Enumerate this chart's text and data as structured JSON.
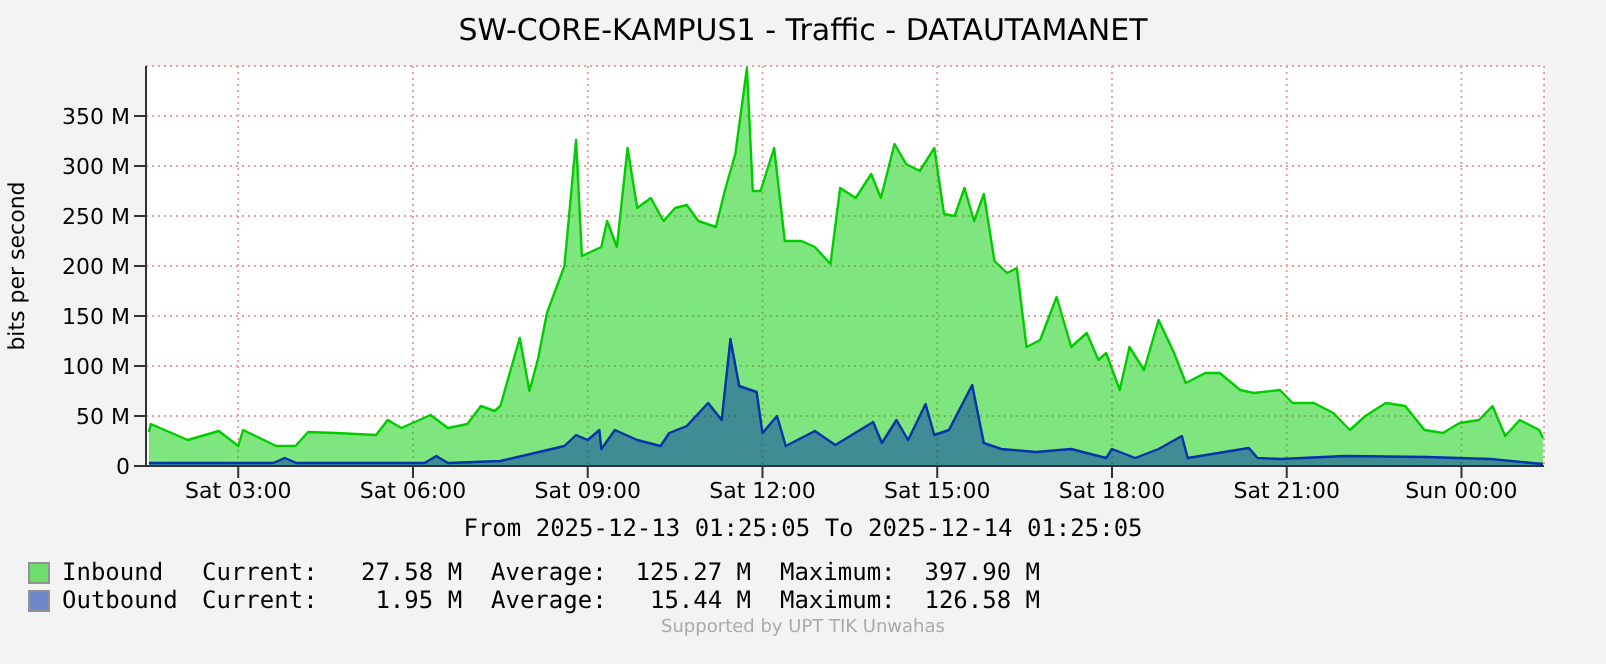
{
  "chart_data": {
    "type": "area",
    "title": "SW-CORE-KAMPUS1 - Traffic - DATAUTAMANET",
    "ylabel": "bits per second",
    "xlim": [
      "2025-12-13T01:25",
      "2025-12-14T01:25"
    ],
    "xticks": [
      {
        "value": "2025-12-13T03:00",
        "label": "Sat 03:00"
      },
      {
        "value": "2025-12-13T06:00",
        "label": "Sat 06:00"
      },
      {
        "value": "2025-12-13T09:00",
        "label": "Sat 09:00"
      },
      {
        "value": "2025-12-13T12:00",
        "label": "Sat 12:00"
      },
      {
        "value": "2025-12-13T15:00",
        "label": "Sat 15:00"
      },
      {
        "value": "2025-12-13T18:00",
        "label": "Sat 18:00"
      },
      {
        "value": "2025-12-13T21:00",
        "label": "Sat 21:00"
      },
      {
        "value": "2025-12-14T00:00",
        "label": "Sun 00:00"
      }
    ],
    "ylim": [
      0,
      400
    ],
    "yticks": [
      0,
      {
        "value": 50,
        "label": "50 M"
      },
      {
        "value": 100,
        "label": "100 M"
      },
      {
        "value": 150,
        "label": "150 M"
      },
      {
        "value": 200,
        "label": "200 M"
      },
      {
        "value": 250,
        "label": "250 M"
      },
      {
        "value": 300,
        "label": "300 M"
      },
      {
        "value": 350,
        "label": "350 M"
      }
    ],
    "grid": true,
    "legend": "bottom",
    "series": [
      {
        "name": "Inbound",
        "color": "#00cc00",
        "x": [
          "2025-12-13T01:28",
          "2025-12-13T01:30",
          "2025-12-13T02:08",
          "2025-12-13T02:40",
          "2025-12-13T03:00",
          "2025-12-13T03:05",
          "2025-12-13T03:39",
          "2025-12-13T03:59",
          "2025-12-13T04:12",
          "2025-12-13T04:41",
          "2025-12-13T05:22",
          "2025-12-13T05:34",
          "2025-12-13T05:48",
          "2025-12-13T06:18",
          "2025-12-13T06:36",
          "2025-12-13T06:56",
          "2025-12-13T07:10",
          "2025-12-13T07:24",
          "2025-12-13T07:30",
          "2025-12-13T07:50",
          "2025-12-13T08:00",
          "2025-12-13T08:09",
          "2025-12-13T08:18",
          "2025-12-13T08:36",
          "2025-12-13T08:48",
          "2025-12-13T08:54",
          "2025-12-13T09:14",
          "2025-12-13T09:20",
          "2025-12-13T09:30",
          "2025-12-13T09:41",
          "2025-12-13T09:51",
          "2025-12-13T10:05",
          "2025-12-13T10:18",
          "2025-12-13T10:30",
          "2025-12-13T10:42",
          "2025-12-13T10:54",
          "2025-12-13T11:12",
          "2025-12-13T11:22",
          "2025-12-13T11:32",
          "2025-12-13T11:44",
          "2025-12-13T11:50",
          "2025-12-13T11:58",
          "2025-12-13T12:12",
          "2025-12-13T12:23",
          "2025-12-13T12:40",
          "2025-12-13T12:54",
          "2025-12-13T13:10",
          "2025-12-13T13:20",
          "2025-12-13T13:36",
          "2025-12-13T13:52",
          "2025-12-13T14:02",
          "2025-12-13T14:16",
          "2025-12-13T14:28",
          "2025-12-13T14:42",
          "2025-12-13T14:57",
          "2025-12-13T15:07",
          "2025-12-13T15:18",
          "2025-12-13T15:28",
          "2025-12-13T15:38",
          "2025-12-13T15:48",
          "2025-12-13T15:59",
          "2025-12-13T16:12",
          "2025-12-13T16:22",
          "2025-12-13T16:32",
          "2025-12-13T16:46",
          "2025-12-13T17:03",
          "2025-12-13T17:18",
          "2025-12-13T17:34",
          "2025-12-13T17:46",
          "2025-12-13T17:54",
          "2025-12-13T18:08",
          "2025-12-13T18:18",
          "2025-12-13T18:33",
          "2025-12-13T18:48",
          "2025-12-13T19:04",
          "2025-12-13T19:16",
          "2025-12-13T19:36",
          "2025-12-13T19:51",
          "2025-12-13T20:12",
          "2025-12-13T20:26",
          "2025-12-13T20:53",
          "2025-12-13T21:06",
          "2025-12-13T21:28",
          "2025-12-13T21:48",
          "2025-12-13T22:05",
          "2025-12-13T22:21",
          "2025-12-13T22:42",
          "2025-12-13T23:02",
          "2025-12-13T23:22",
          "2025-12-13T23:41",
          "2025-12-13T23:58",
          "2025-12-14T00:18",
          "2025-12-14T00:32",
          "2025-12-14T00:45",
          "2025-12-14T01:00",
          "2025-12-14T01:20",
          "2025-12-14T01:24"
        ],
        "values": [
          34,
          42,
          26,
          35,
          20,
          36,
          20,
          20,
          34,
          33,
          31,
          46,
          38,
          51,
          38,
          42,
          60,
          55,
          60,
          128,
          75,
          108,
          153,
          200,
          326,
          210,
          219,
          245,
          219,
          318,
          258,
          268,
          245,
          258,
          261,
          245,
          239,
          278,
          312,
          398,
          275,
          275,
          318,
          225,
          225,
          219,
          202,
          278,
          268,
          292,
          268,
          322,
          302,
          295,
          318,
          252,
          250,
          278,
          245,
          272,
          205,
          193,
          198,
          119,
          126,
          169,
          119,
          133,
          106,
          113,
          76,
          119,
          96,
          146,
          113,
          83,
          93,
          93,
          76,
          73,
          76,
          63,
          63,
          53,
          36,
          50,
          63,
          60,
          36,
          33,
          43,
          46,
          60,
          30,
          46,
          36,
          28
        ]
      },
      {
        "name": "Outbound",
        "color": "#0033aa",
        "x": [
          "2025-12-13T01:28",
          "2025-12-13T03:36",
          "2025-12-13T03:48",
          "2025-12-13T04:00",
          "2025-12-13T06:12",
          "2025-12-13T06:24",
          "2025-12-13T06:36",
          "2025-12-13T07:30",
          "2025-12-13T08:36",
          "2025-12-13T08:48",
          "2025-12-13T09:00",
          "2025-12-13T09:12",
          "2025-12-13T09:14",
          "2025-12-13T09:28",
          "2025-12-13T09:51",
          "2025-12-13T10:15",
          "2025-12-13T10:24",
          "2025-12-13T10:42",
          "2025-12-13T11:04",
          "2025-12-13T11:18",
          "2025-12-13T11:27",
          "2025-12-13T11:36",
          "2025-12-13T11:54",
          "2025-12-13T12:00",
          "2025-12-13T12:15",
          "2025-12-13T12:24",
          "2025-12-13T12:54",
          "2025-12-13T13:15",
          "2025-12-13T13:54",
          "2025-12-13T14:03",
          "2025-12-13T14:18",
          "2025-12-13T14:30",
          "2025-12-13T14:48",
          "2025-12-13T14:57",
          "2025-12-13T15:12",
          "2025-12-13T15:36",
          "2025-12-13T15:48",
          "2025-12-13T16:06",
          "2025-12-13T16:42",
          "2025-12-13T17:18",
          "2025-12-13T17:42",
          "2025-12-13T17:54",
          "2025-12-13T18:00",
          "2025-12-13T18:24",
          "2025-12-13T18:48",
          "2025-12-13T19:12",
          "2025-12-13T19:18",
          "2025-12-13T20:21",
          "2025-12-13T20:30",
          "2025-12-13T20:54",
          "2025-12-13T22:00",
          "2025-12-13T23:24",
          "2025-12-14T00:30",
          "2025-12-14T01:24"
        ],
        "values": [
          3,
          3,
          8,
          3,
          3,
          10,
          3,
          5,
          20,
          31,
          26,
          36,
          17,
          36,
          26,
          20,
          33,
          40,
          63,
          46,
          127,
          80,
          74,
          33,
          50,
          20,
          35,
          21,
          44,
          23,
          46,
          26,
          62,
          31,
          36,
          81,
          23,
          17,
          14,
          17,
          11,
          8,
          17,
          8,
          17,
          30,
          8,
          18,
          8,
          7,
          10,
          9,
          7,
          2
        ]
      }
    ],
    "annotations": [
      "From 2025-12-13 01:25:05 To 2025-12-14 01:25:05",
      "Current:   27.58 M  Average:  125.27 M  Maximum:  397.90 M",
      "Current:    1.95 M  Average:   15.44 M  Maximum:  126.58 M",
      "Supported by UPT TIK Unwahas"
    ]
  }
}
